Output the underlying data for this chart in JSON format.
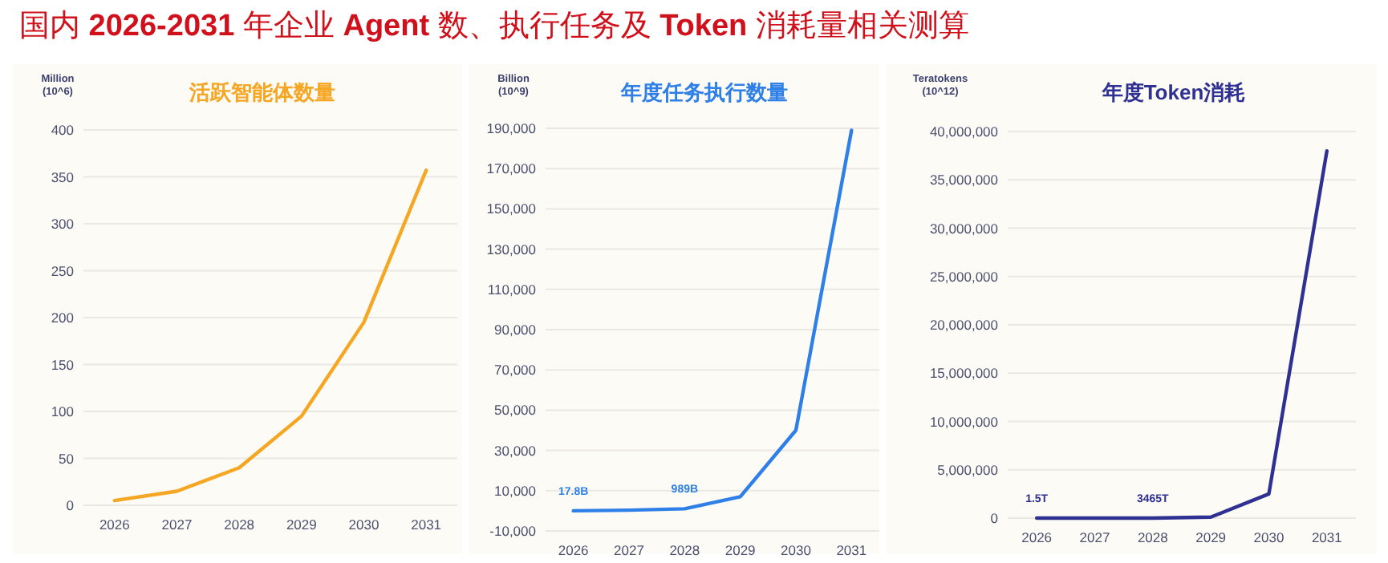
{
  "chart_data": [
    {
      "type": "line",
      "title": "活跃智能体数量",
      "ylabel": "Million\n(10^6)",
      "categories": [
        "2026",
        "2027",
        "2028",
        "2029",
        "2030",
        "2031"
      ],
      "series": [
        {
          "color": "#f5a623",
          "values": [
            5,
            15,
            40,
            95,
            195,
            357
          ]
        }
      ],
      "ylim": [
        0,
        400
      ],
      "yticks": [
        0,
        50,
        100,
        150,
        200,
        250,
        300,
        350,
        400
      ],
      "grid": "y",
      "annotations": [
        "国内 2026-2031 年企业 Agent 数、执行任务及 Token 消耗量相关测算"
      ]
    },
    {
      "type": "line",
      "title": "年度任务执行数量",
      "ylabel": "Billion\n(10^9)",
      "categories": [
        "2026",
        "2027",
        "2028",
        "2029",
        "2030",
        "2031"
      ],
      "series": [
        {
          "color": "#2f7fe8",
          "values": [
            17.8,
            300,
            989,
            7000,
            40000,
            189000
          ]
        }
      ],
      "ylim": [
        -10000,
        190000
      ],
      "yticks": [
        {
          "value": -10000,
          "label": "-10,000"
        },
        {
          "value": 10000,
          "label": "10,000"
        },
        {
          "value": 30000,
          "label": "30,000"
        },
        {
          "value": 50000,
          "label": "50,000"
        },
        {
          "value": 70000,
          "label": "70,000"
        },
        {
          "value": 90000,
          "label": "90,000"
        },
        {
          "value": 110000,
          "label": "110,000"
        },
        {
          "value": 130000,
          "label": "130,000"
        },
        {
          "value": 150000,
          "label": "150,000"
        },
        {
          "value": 170000,
          "label": "170,000"
        },
        {
          "value": 190000,
          "label": "190,000"
        }
      ],
      "grid": "y",
      "annotations": [
        {
          "text": "17.8B",
          "x": "2026",
          "y": 17.8
        },
        {
          "text": "989B",
          "x": "2028",
          "y": 989
        }
      ]
    },
    {
      "type": "line",
      "title": "年度Token消耗",
      "ylabel": "Teratokens\n(10^12)",
      "categories": [
        "2026",
        "2027",
        "2028",
        "2029",
        "2030",
        "2031"
      ],
      "series": [
        {
          "color": "#2e3192",
          "values": [
            1.5,
            100,
            3465,
            100000,
            2500000,
            38000000
          ]
        }
      ],
      "ylim": [
        0,
        40000000
      ],
      "yticks": [
        0,
        {
          "value": 5000000,
          "label": "5,000,000"
        },
        {
          "value": 10000000,
          "label": "10,000,000"
        },
        {
          "value": 15000000,
          "label": "15,000,000"
        },
        {
          "value": 20000000,
          "label": "20,000,000"
        },
        {
          "value": 25000000,
          "label": "25,000,000"
        },
        {
          "value": 30000000,
          "label": "30,000,000"
        },
        {
          "value": 35000000,
          "label": "35,000,000"
        },
        {
          "value": 40000000,
          "label": "40,000,000"
        }
      ],
      "grid": "y",
      "annotations": [
        {
          "text": "1.5T",
          "x": "2026",
          "y": 1.5
        },
        {
          "text": "3465T",
          "x": "2028",
          "y": 3465
        }
      ]
    }
  ]
}
